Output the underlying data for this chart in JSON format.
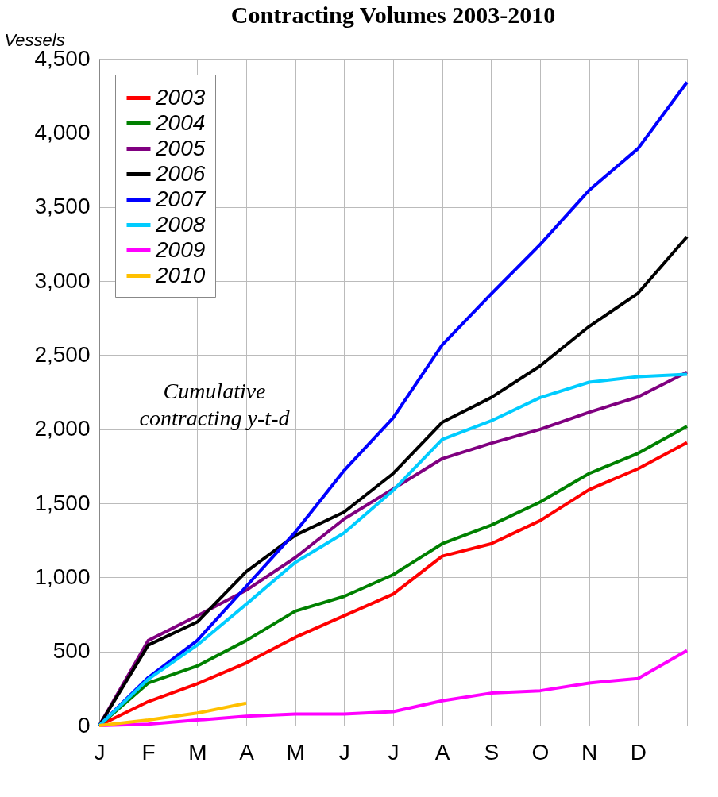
{
  "chart_data": {
    "type": "line",
    "title": "Contracting Volumes 2003-2010",
    "ylabel": "Vessels",
    "categories": [
      "J",
      "F",
      "M",
      "A",
      "M",
      "J",
      "J",
      "A",
      "S",
      "O",
      "N",
      "D",
      null
    ],
    "series": [
      {
        "name": "2003",
        "color": "#ff0000",
        "values": [
          0,
          162,
          282,
          423,
          595,
          741,
          887,
          1143,
          1227,
          1383,
          1592,
          1733,
          1910
        ]
      },
      {
        "name": "2004",
        "color": "#008000",
        "values": [
          0,
          287,
          402,
          574,
          772,
          872,
          1018,
          1227,
          1352,
          1508,
          1701,
          1837,
          2020
        ]
      },
      {
        "name": "2005",
        "color": "#800080",
        "values": [
          0,
          574,
          741,
          913,
          1133,
          1394,
          1597,
          1801,
          1905,
          1999,
          2114,
          2218,
          2385
        ]
      },
      {
        "name": "2006",
        "color": "#000000",
        "values": [
          0,
          543,
          699,
          1039,
          1284,
          1441,
          1701,
          2046,
          2213,
          2427,
          2693,
          2918,
          3299
        ]
      },
      {
        "name": "2007",
        "color": "#0000ff",
        "values": [
          0,
          324,
          574,
          939,
          1305,
          1722,
          2077,
          2568,
          2912,
          3246,
          3612,
          3894,
          4342
        ]
      },
      {
        "name": "2008",
        "color": "#00ccff",
        "values": [
          0,
          313,
          543,
          819,
          1101,
          1300,
          1587,
          1931,
          2056,
          2213,
          2317,
          2354,
          2370
        ]
      },
      {
        "name": "2009",
        "color": "#ff00ff",
        "values": [
          0,
          10,
          37,
          63,
          78,
          78,
          94,
          167,
          219,
          235,
          287,
          318,
          506
        ]
      },
      {
        "name": "2010",
        "color": "#ffc000",
        "values": [
          0,
          37,
          84,
          151,
          null,
          null,
          null,
          null,
          null,
          null,
          null,
          null,
          null
        ]
      }
    ],
    "ylim": [
      0,
      4500
    ],
    "yticks": [
      0,
      500,
      {
        "value": 1000,
        "label": "1,000"
      },
      {
        "value": 1500,
        "label": "1,500"
      },
      {
        "value": 2000,
        "label": "2,000"
      },
      {
        "value": 2500,
        "label": "2,500"
      },
      {
        "value": 3000,
        "label": "3,000"
      },
      {
        "value": 3500,
        "label": "3,500"
      },
      {
        "value": 4000,
        "label": "4,000"
      },
      {
        "value": 4500,
        "label": "4,500"
      }
    ],
    "grid": true,
    "legend": "top left",
    "marker": "none",
    "line_style": "solid",
    "annotations": [
      "Cumulative contracting y-t-d"
    ]
  }
}
